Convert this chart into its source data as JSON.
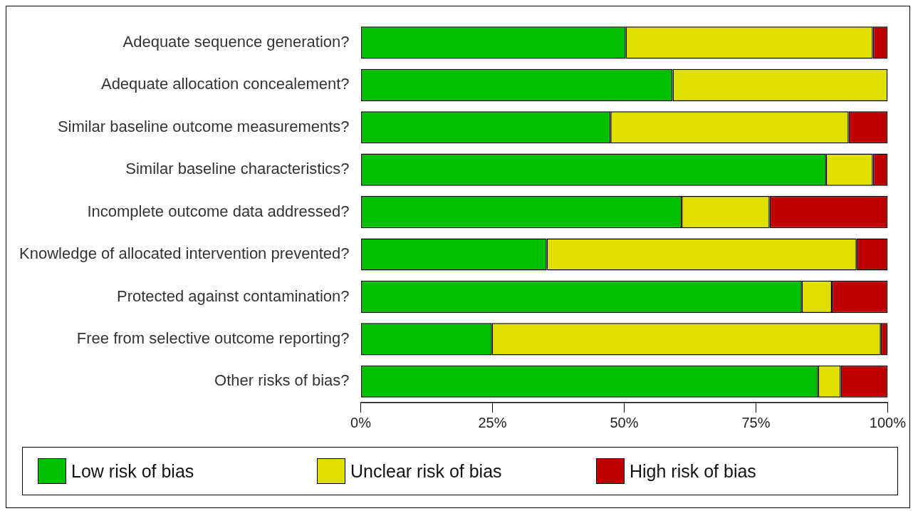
{
  "chart_data": {
    "type": "bar",
    "orientation": "horizontal",
    "stacked": true,
    "categories": [
      "Adequate sequence generation?",
      "Adequate allocation concealement?",
      "Similar baseline outcome measurements?",
      "Similar baseline characteristics?",
      "Incomplete outcome data addressed?",
      "Knowledge of allocated intervention prevented?",
      "Protected against contamination?",
      "Free from selective outcome reporting?",
      "Other risks of bias?"
    ],
    "series": [
      {
        "name": "Low risk of bias",
        "color": "#00c000",
        "values": [
          50.3,
          59.2,
          47.4,
          88.3,
          60.9,
          35.3,
          83.7,
          24.9,
          86.8
        ]
      },
      {
        "name": "Unclear risk of bias",
        "color": "#e0e000",
        "values": [
          46.9,
          40.8,
          45.2,
          8.9,
          16.7,
          58.8,
          5.7,
          73.8,
          4.3
        ]
      },
      {
        "name": "High risk of bias",
        "color": "#c00000",
        "values": [
          2.8,
          0,
          7.4,
          2.8,
          22.4,
          5.9,
          10.6,
          1.3,
          8.9
        ]
      }
    ],
    "xlim": [
      0,
      100
    ],
    "xticks": [
      {
        "value": 0,
        "label": "0%"
      },
      {
        "value": 25,
        "label": "25%"
      },
      {
        "value": 50,
        "label": "50%"
      },
      {
        "value": 75,
        "label": "75%"
      },
      {
        "value": 100,
        "label": "100%"
      }
    ],
    "grid": false,
    "legend": "bottom"
  }
}
